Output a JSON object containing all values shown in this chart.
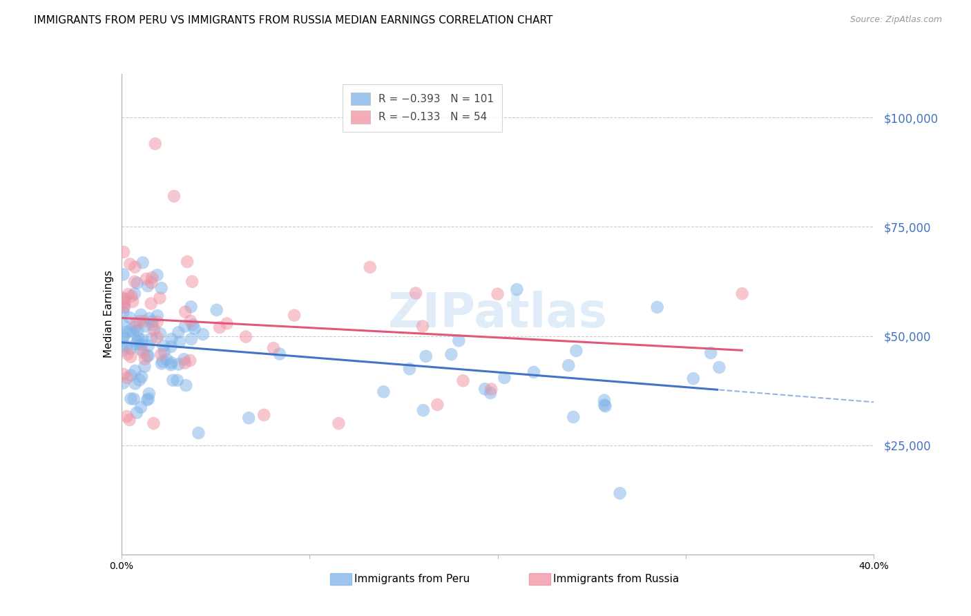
{
  "title": "IMMIGRANTS FROM PERU VS IMMIGRANTS FROM RUSSIA MEDIAN EARNINGS CORRELATION CHART",
  "source": "Source: ZipAtlas.com",
  "ylabel": "Median Earnings",
  "ytick_values": [
    100000,
    75000,
    50000,
    25000
  ],
  "ylim": [
    0,
    110000
  ],
  "xlim": [
    0.0,
    0.4
  ],
  "peru_color": "#7EB3E8",
  "russia_color": "#F090A0",
  "peru_line_color": "#4472C4",
  "russia_line_color": "#E05878",
  "peru_R": -0.393,
  "peru_N": 101,
  "russia_R": -0.133,
  "russia_N": 54,
  "watermark": "ZIPatlas",
  "title_fontsize": 11,
  "tick_fontsize": 10,
  "source_fontsize": 9,
  "background_color": "#ffffff",
  "grid_color": "#cccccc",
  "right_tick_color": "#4472C4"
}
